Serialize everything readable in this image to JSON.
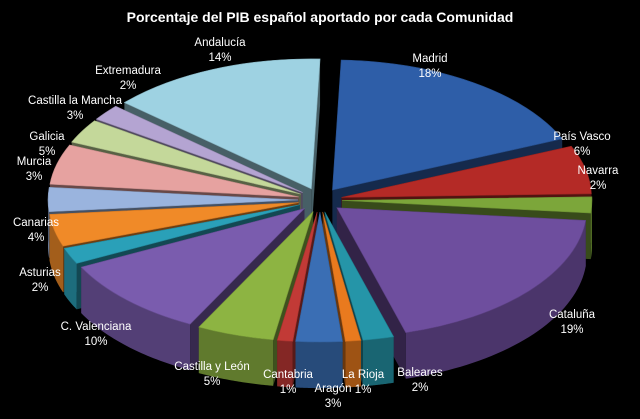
{
  "chart_data": {
    "type": "pie",
    "style": "exploded-3d",
    "title": "Porcentaje del PIB español aportado por cada Comunidad",
    "unit": "%",
    "slices": [
      {
        "name": "Madrid",
        "value": 18,
        "label": "18%",
        "color": "#2E5EA8"
      },
      {
        "name": "País Vasco",
        "value": 6,
        "label": "6%",
        "color": "#B42A26"
      },
      {
        "name": "Navarra",
        "value": 2,
        "label": "2%",
        "color": "#7CA63A"
      },
      {
        "name": "Cataluña",
        "value": 19,
        "label": "19%",
        "color": "#6E4E9E"
      },
      {
        "name": "Baleares",
        "value": 2,
        "label": "2%",
        "color": "#2595A8"
      },
      {
        "name": "La Rioja",
        "value": 1,
        "label": "1%",
        "color": "#E97A1E"
      },
      {
        "name": "Aragón",
        "value": 3,
        "label": "3%",
        "color": "#3A6EB4"
      },
      {
        "name": "Cantabria",
        "value": 1,
        "label": "1%",
        "color": "#C23A36"
      },
      {
        "name": "Castilla y León",
        "value": 5,
        "label": "5%",
        "color": "#8DB442"
      },
      {
        "name": "C. Valenciana",
        "value": 10,
        "label": "10%",
        "color": "#7A5CAE"
      },
      {
        "name": "Asturias",
        "value": 2,
        "label": "2%",
        "color": "#2AA0B8"
      },
      {
        "name": "Canarias",
        "value": 4,
        "label": "4%",
        "color": "#F08A28"
      },
      {
        "name": "Murcia",
        "value": 3,
        "label": "3%",
        "color": "#9AB4DE"
      },
      {
        "name": "Galicia",
        "value": 5,
        "label": "5%",
        "color": "#E6A2A0"
      },
      {
        "name": "Castilla la Mancha",
        "value": 3,
        "label": "3%",
        "color": "#C4D89A"
      },
      {
        "name": "Extremadura",
        "value": 2,
        "label": "2%",
        "color": "#B4A4D2"
      },
      {
        "name": "Andalucía",
        "value": 14,
        "label": "14%",
        "color": "#9ED2E2"
      }
    ]
  }
}
